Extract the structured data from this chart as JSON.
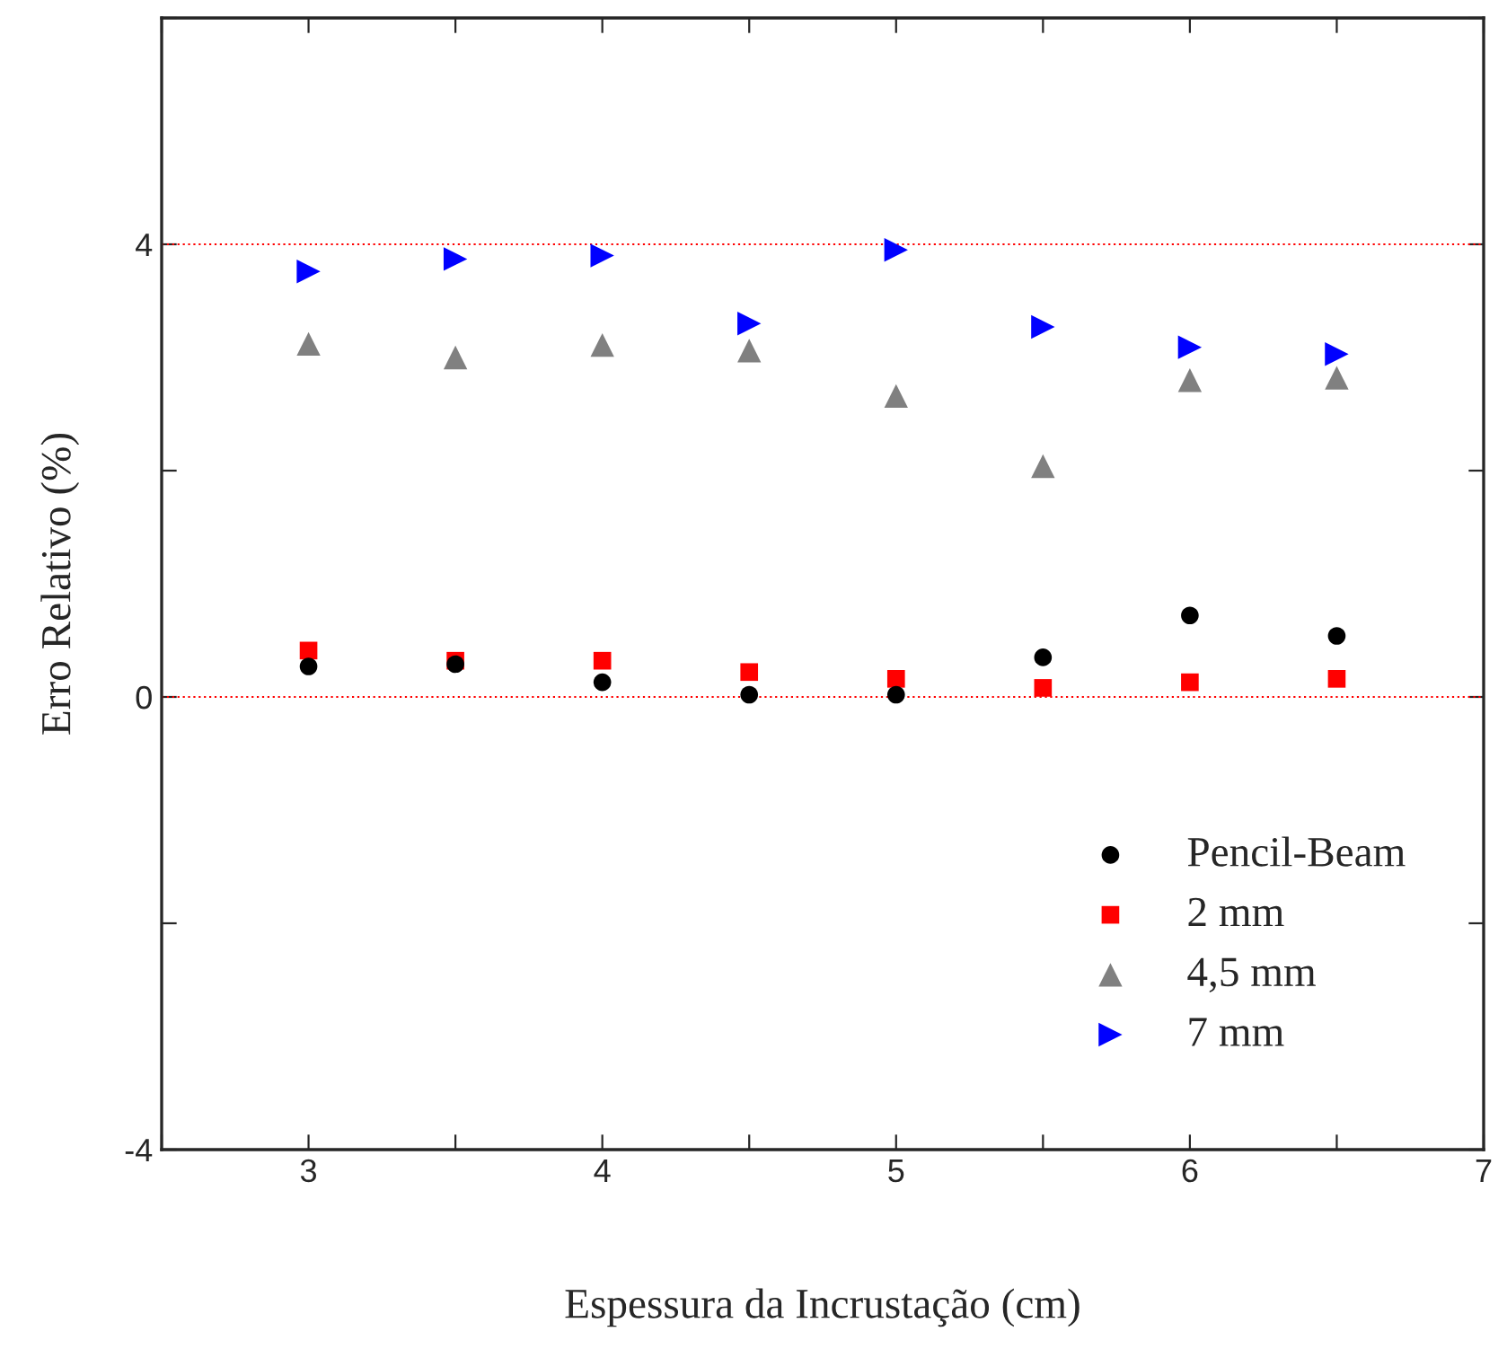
{
  "chart_data": {
    "type": "scatter",
    "xlabel": "Espessura da Incrustação (cm)",
    "ylabel": "Erro Relativo (%)",
    "x": [
      3,
      3.5,
      4,
      4.5,
      5,
      5.5,
      6,
      6.5
    ],
    "series": [
      {
        "name": "Pencil-Beam",
        "color": "#000000",
        "marker": "circle",
        "values": [
          0.27,
          0.29,
          0.13,
          0.02,
          0.02,
          0.35,
          0.72,
          0.54
        ]
      },
      {
        "name": "2 mm",
        "color": "#ff0000",
        "marker": "square",
        "values": [
          0.41,
          0.32,
          0.32,
          0.22,
          0.16,
          0.08,
          0.13,
          0.16
        ]
      },
      {
        "name": "4,5 mm",
        "color": "#808080",
        "marker": "triangle",
        "values": [
          3.12,
          3.0,
          3.11,
          3.06,
          2.66,
          2.04,
          2.8,
          2.82
        ]
      },
      {
        "name": "7 mm",
        "color": "#0000ff",
        "marker": "triangle_right",
        "values": [
          3.76,
          3.87,
          3.9,
          3.3,
          3.95,
          3.27,
          3.09,
          3.03
        ]
      }
    ],
    "xlim": [
      2.5,
      7
    ],
    "xticks": [
      {
        "value": 2.5,
        "label": null
      },
      3,
      {
        "value": 3.5,
        "label": null
      },
      4,
      {
        "value": 4.5,
        "label": null
      },
      5,
      {
        "value": 5.5,
        "label": null
      },
      6,
      {
        "value": 6.5,
        "label": null
      },
      7
    ],
    "ylim": [
      -4,
      6
    ],
    "yticks": [
      -4,
      {
        "value": -2,
        "label": null
      },
      0,
      {
        "value": 2,
        "label": null
      },
      4,
      {
        "value": 6,
        "label": null
      }
    ],
    "ref_lines": [
      {
        "axis": "y",
        "value": 4,
        "color": "#ff0000",
        "line_style": "dotted"
      },
      {
        "axis": "y",
        "value": 0,
        "color": "#ff0000",
        "line_style": "dotted"
      }
    ],
    "grid": false,
    "legend": "bottom right"
  }
}
